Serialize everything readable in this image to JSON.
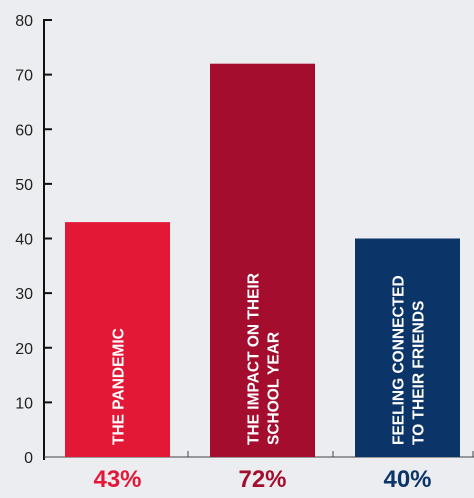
{
  "chart_data": {
    "type": "bar",
    "categories": [
      "THE PANDEMIC",
      "THE IMPACT ON THEIR SCHOOL YEAR",
      "FEELING CONNECTED TO THEIR FRIENDS"
    ],
    "category_lines": [
      [
        "THE PANDEMIC"
      ],
      [
        "THE IMPACT ON THEIR",
        "SCHOOL YEAR"
      ],
      [
        "FEELING CONNECTED",
        "TO THEIR FRIENDS"
      ]
    ],
    "values": [
      43,
      72,
      40
    ],
    "value_labels": [
      "43%",
      "72%",
      "40%"
    ],
    "colors": [
      "#e31837",
      "#a50d2e",
      "#0b3469"
    ],
    "value_label_colors": [
      "#e31837",
      "#a50d2e",
      "#0b3469"
    ],
    "y_ticks": [
      0,
      10,
      20,
      30,
      40,
      50,
      60,
      70,
      80
    ],
    "ylim": [
      0,
      80
    ],
    "title": "",
    "xlabel": "",
    "ylabel": "",
    "grid": false,
    "legend": "none"
  }
}
